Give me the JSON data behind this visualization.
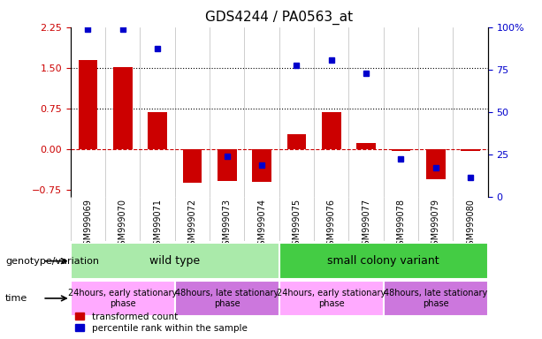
{
  "title": "GDS4244 / PA0563_at",
  "samples": [
    "GSM999069",
    "GSM999070",
    "GSM999071",
    "GSM999072",
    "GSM999073",
    "GSM999074",
    "GSM999075",
    "GSM999076",
    "GSM999077",
    "GSM999078",
    "GSM999079",
    "GSM999080"
  ],
  "red_values": [
    1.65,
    1.52,
    0.68,
    -0.62,
    -0.58,
    -0.6,
    0.28,
    0.68,
    0.12,
    -0.03,
    -0.55,
    -0.04
  ],
  "blue_values": [
    2.22,
    2.22,
    1.85,
    null,
    -0.13,
    -0.3,
    1.55,
    1.65,
    1.4,
    -0.18,
    -0.35,
    -0.52
  ],
  "ylim": [
    -0.875,
    2.25
  ],
  "y_ticks_left": [
    -0.75,
    0,
    0.75,
    1.5,
    2.25
  ],
  "y_ticks_right": [
    0,
    25,
    50,
    75,
    100
  ],
  "dotted_lines": [
    0.75,
    1.5
  ],
  "bar_color": "#cc0000",
  "dot_color": "#0000cc",
  "bar_width": 0.55,
  "genotype_row": [
    {
      "label": "wild type",
      "start": 0,
      "end": 6,
      "color": "#aaeaaa"
    },
    {
      "label": "small colony variant",
      "start": 6,
      "end": 12,
      "color": "#44cc44"
    }
  ],
  "time_row": [
    {
      "label": "24hours, early stationary\nphase",
      "start": 0,
      "end": 3,
      "color": "#ffaaff"
    },
    {
      "label": "48hours, late stationary\nphase",
      "start": 3,
      "end": 6,
      "color": "#cc77dd"
    },
    {
      "label": "24hours, early stationary\nphase",
      "start": 6,
      "end": 9,
      "color": "#ffaaff"
    },
    {
      "label": "48hours, late stationary\nphase",
      "start": 9,
      "end": 12,
      "color": "#cc77dd"
    }
  ],
  "legend_red": "transformed count",
  "legend_blue": "percentile rank within the sample",
  "label_genotype": "genotype/variation",
  "label_time": "time",
  "right_axis_label_color": "#0000cc",
  "left_axis_label_color": "#cc0000",
  "col_border_color": "#bbbbbb",
  "background_color": "#ffffff"
}
